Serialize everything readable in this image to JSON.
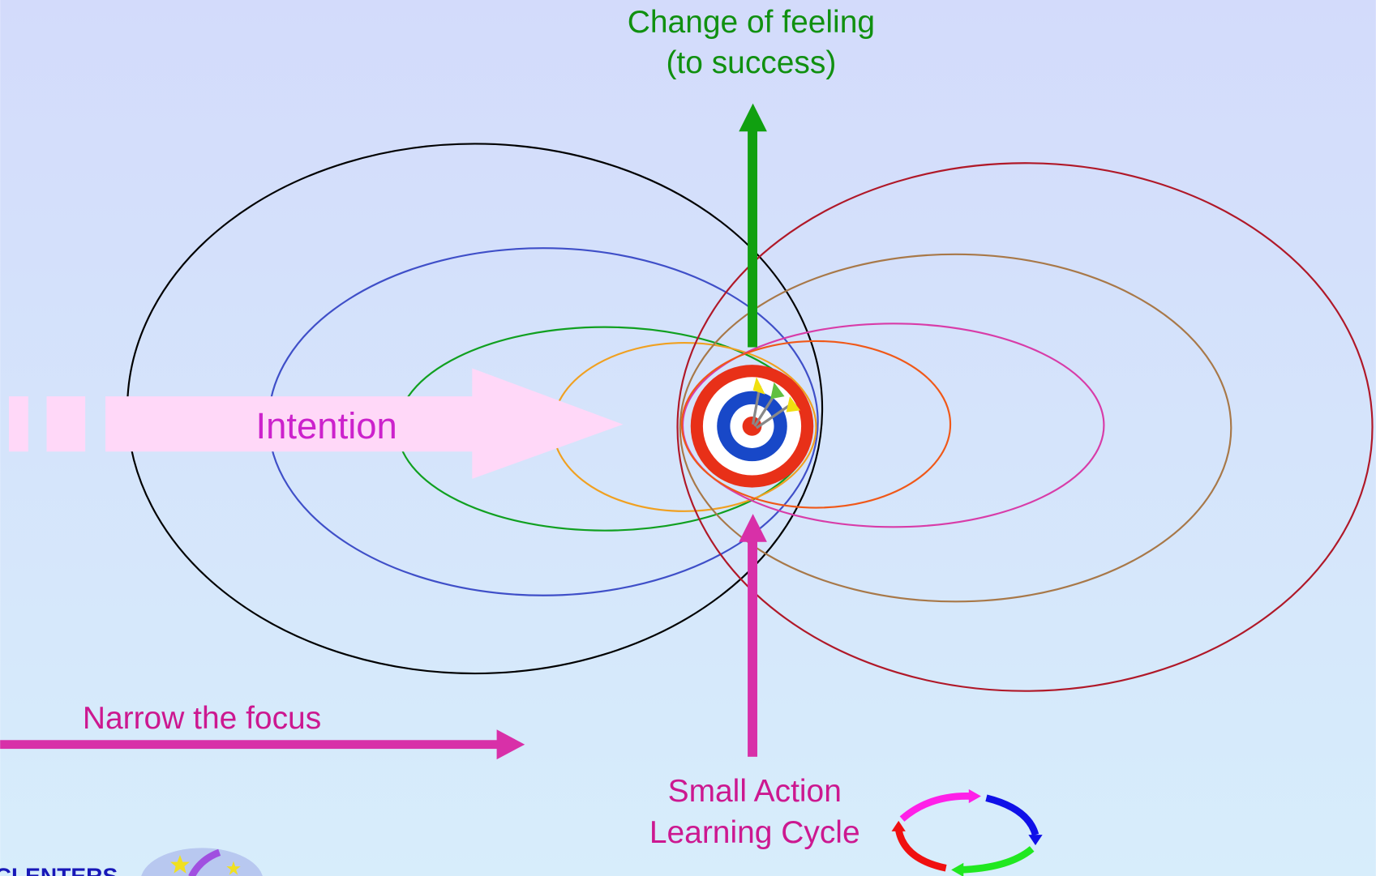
{
  "top_label": {
    "line1": "Change of feeling",
    "line2": "(to success)"
  },
  "intention": {
    "label": "Intention"
  },
  "focus": {
    "label": "Narrow the focus"
  },
  "action": {
    "line1": "Small Action",
    "line2": "Learning Cycle"
  },
  "logo": {
    "text": "CLENTERS"
  }
}
